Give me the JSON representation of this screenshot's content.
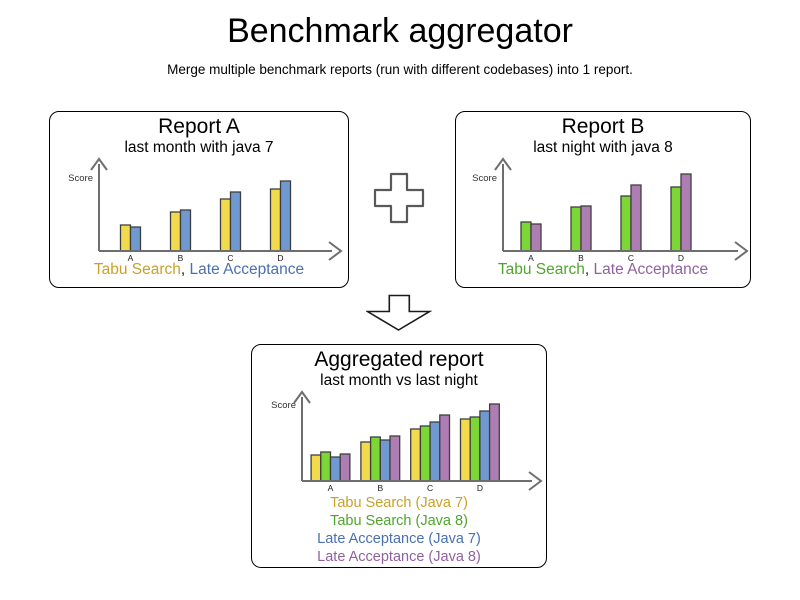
{
  "page": {
    "title": "Benchmark aggregator",
    "subtitle": "Merge multiple benchmark reports (run with different codebases) into 1 report.",
    "legend_separator": ", "
  },
  "palette": {
    "tabu_java7_bar": "#F2DA4E",
    "tabu_java8_bar": "#7CD636",
    "late_java7_bar": "#7099CF",
    "late_java8_bar": "#AE7DB3",
    "tabu_java7_text": "#C8A227",
    "tabu_java8_text": "#4FA52C",
    "late_java7_text": "#4A70B0",
    "late_java8_text": "#91619F",
    "bar_outline": "#3F3F3F",
    "axis": "#6E6E6E",
    "axis_label": "#333333",
    "category_label": "#1A1A1A",
    "plus_outline": "#595959",
    "arrow_outline": "#1A1A1A"
  },
  "reports": {
    "report_a": {
      "title": "Report A",
      "subtitle": "last month with java 7",
      "legend": [
        {
          "label": "Tabu Search",
          "color": "#C8A227"
        },
        {
          "label": "Late Acceptance",
          "color": "#4A70B0"
        }
      ],
      "chart_data": {
        "type": "bar",
        "title": "Report A",
        "ylabel": "Score",
        "categories": [
          "A",
          "B",
          "C",
          "D"
        ],
        "series": [
          {
            "name": "Tabu Search",
            "color": "#F2DA4E",
            "values": [
              26,
              39,
              52,
              62
            ]
          },
          {
            "name": "Late Acceptance",
            "color": "#7099CF",
            "values": [
              24,
              41,
              59,
              70
            ]
          }
        ],
        "ylim": [
          0,
          100
        ],
        "grid": false,
        "legend_position": "bottom"
      }
    },
    "report_b": {
      "title": "Report B",
      "subtitle": "last night with java 8",
      "legend": [
        {
          "label": "Tabu Search",
          "color": "#4FA52C"
        },
        {
          "label": "Late Acceptance",
          "color": "#91619F"
        }
      ],
      "chart_data": {
        "type": "bar",
        "title": "Report B",
        "ylabel": "Score",
        "categories": [
          "A",
          "B",
          "C",
          "D"
        ],
        "series": [
          {
            "name": "Tabu Search",
            "color": "#7CD636",
            "values": [
              29,
              44,
              55,
              64
            ]
          },
          {
            "name": "Late Acceptance",
            "color": "#AE7DB3",
            "values": [
              27,
              45,
              66,
              77
            ]
          }
        ],
        "ylim": [
          0,
          100
        ],
        "grid": false,
        "legend_position": "bottom"
      }
    },
    "aggregated": {
      "title": "Aggregated report",
      "subtitle": "last month vs last night",
      "legend": [
        {
          "label": "Tabu Search (Java 7)",
          "color": "#C8A227"
        },
        {
          "label": "Tabu Search (Java 8)",
          "color": "#4FA52C"
        },
        {
          "label": "Late Acceptance (Java 7)",
          "color": "#4A70B0"
        },
        {
          "label": "Late Acceptance (Java 8)",
          "color": "#91619F"
        }
      ],
      "chart_data": {
        "type": "bar",
        "title": "Aggregated report",
        "ylabel": "Score",
        "categories": [
          "A",
          "B",
          "C",
          "D"
        ],
        "series": [
          {
            "name": "Tabu Search (Java 7)",
            "color": "#F2DA4E",
            "values": [
              26,
              39,
              52,
              62
            ]
          },
          {
            "name": "Tabu Search (Java 8)",
            "color": "#7CD636",
            "values": [
              29,
              44,
              55,
              64
            ]
          },
          {
            "name": "Late Acceptance (Java 7)",
            "color": "#7099CF",
            "values": [
              24,
              41,
              59,
              70
            ]
          },
          {
            "name": "Late Acceptance (Java 8)",
            "color": "#AE7DB3",
            "values": [
              27,
              45,
              66,
              77
            ]
          }
        ],
        "ylim": [
          0,
          100
        ],
        "grid": false,
        "legend_position": "bottom"
      }
    }
  }
}
